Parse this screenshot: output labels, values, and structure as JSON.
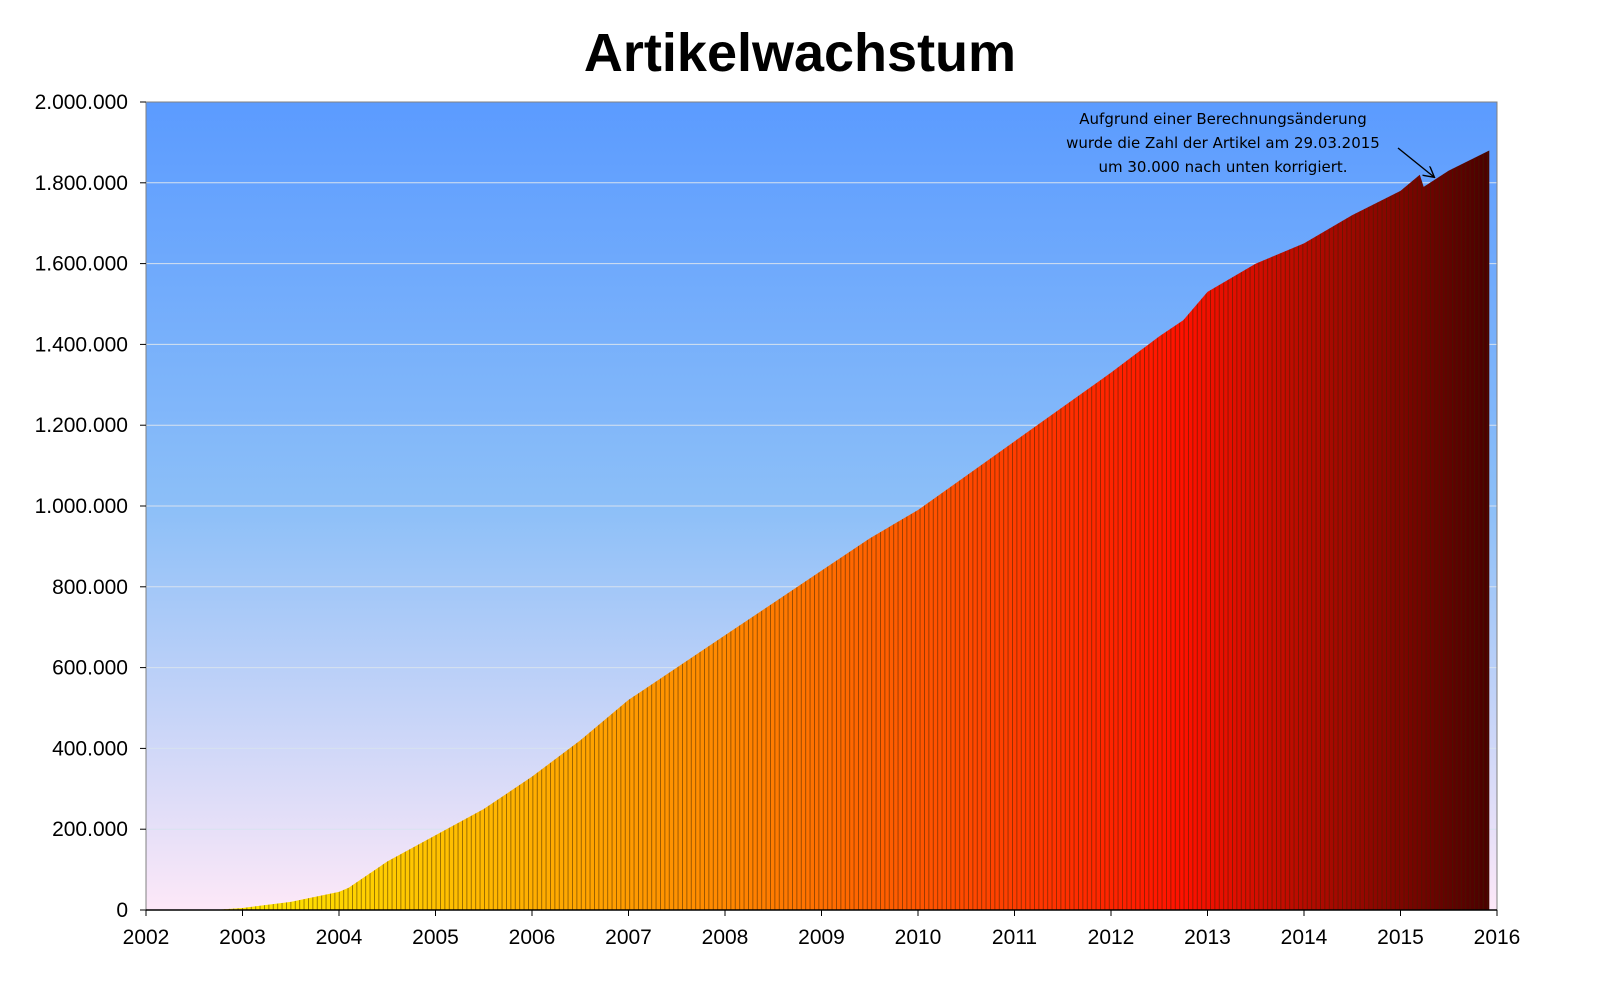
{
  "chart_data": {
    "type": "area",
    "title": "Artikelwachstum",
    "xlabel": "",
    "ylabel": "",
    "xlim": [
      2002,
      2016
    ],
    "ylim": [
      0,
      2000000
    ],
    "grid": true,
    "legend": "none",
    "x_ticks": [
      "2002",
      "2003",
      "2004",
      "2005",
      "2006",
      "2007",
      "2008",
      "2009",
      "2010",
      "2011",
      "2012",
      "2013",
      "2014",
      "2015",
      "2016"
    ],
    "y_ticks": [
      "0",
      "200.000",
      "400.000",
      "600.000",
      "800.000",
      "1.000.000",
      "1.200.000",
      "1.400.000",
      "1.600.000",
      "1.800.000",
      "2.000.000"
    ],
    "series": [
      {
        "x": [
          2002.7,
          2003.0,
          2003.5,
          2004.0,
          2004.1,
          2004.5,
          2005.0,
          2005.5,
          2006.0,
          2006.5,
          2007.0,
          2007.5,
          2008.0,
          2008.5,
          2009.0,
          2009.5,
          2010.0,
          2010.5,
          2011.0,
          2011.5,
          2012.0,
          2012.5,
          2012.75,
          2013.0,
          2013.5,
          2014.0,
          2014.5,
          2015.0,
          2015.2,
          2015.24,
          2015.5,
          2015.92
        ],
        "y": [
          0,
          5000,
          20000,
          45000,
          55000,
          120000,
          185000,
          250000,
          330000,
          420000,
          520000,
          600000,
          680000,
          760000,
          840000,
          920000,
          990000,
          1075000,
          1160000,
          1245000,
          1330000,
          1420000,
          1460000,
          1530000,
          1600000,
          1650000,
          1720000,
          1780000,
          1820000,
          1790000,
          1830000,
          1880000
        ]
      }
    ],
    "annotations": [
      {
        "lines": [
          "Aufgrund einer Berechnungsänderung",
          "wurde die Zahl der Artikel am 29.03.2015",
          "um 30.000 nach unten korrigiert."
        ],
        "points_to": [
          2015.24,
          1815000
        ]
      }
    ]
  },
  "colors": {
    "bg_top": "#5b9bff",
    "bg_mid": "#8cbff8",
    "bg_bottom": "#fde8f8",
    "area_start": "#ffee00",
    "area_orange": "#ff8800",
    "area_red": "#ff1100",
    "area_end": "#4a0000",
    "bar_line": "#3a2000",
    "gridline": "#d7e2ef",
    "axis": "#000000"
  }
}
